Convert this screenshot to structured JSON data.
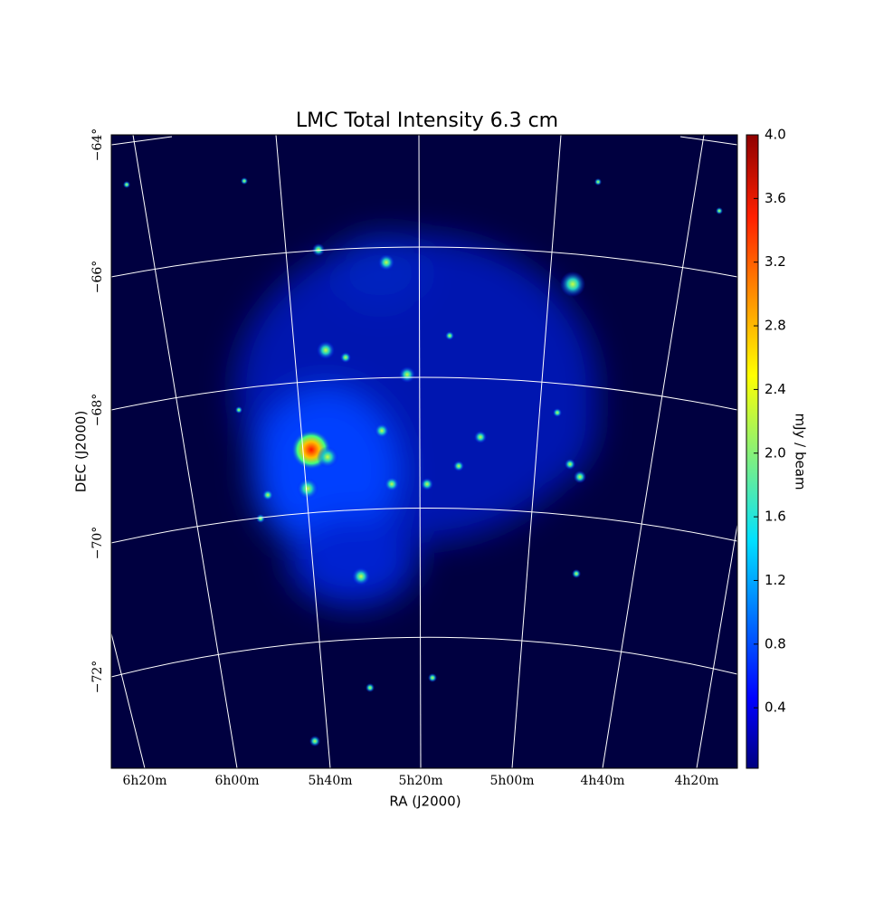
{
  "chart_data": {
    "type": "image",
    "title": "LMC Total Intensity 6.3 cm",
    "xlabel": "RA (J2000)",
    "ylabel": "DEC (J2000)",
    "ra_ticks": [
      "6h20m",
      "6h00m",
      "5h40m",
      "5h20m",
      "5h00m",
      "4h40m",
      "4h20m"
    ],
    "dec_ticks": [
      "−64°",
      "−66°",
      "−68°",
      "−70°",
      "−72°"
    ],
    "colorbar": {
      "label": "mJy / beam",
      "lim": [
        0.02,
        4.0
      ],
      "ticks": [
        0.4,
        0.8,
        1.2,
        1.6,
        {
          "value": 2,
          "label": "2.0"
        },
        2.4,
        2.8,
        3.2,
        3.6,
        {
          "value": 4,
          "label": "4.0"
        }
      ]
    }
  }
}
